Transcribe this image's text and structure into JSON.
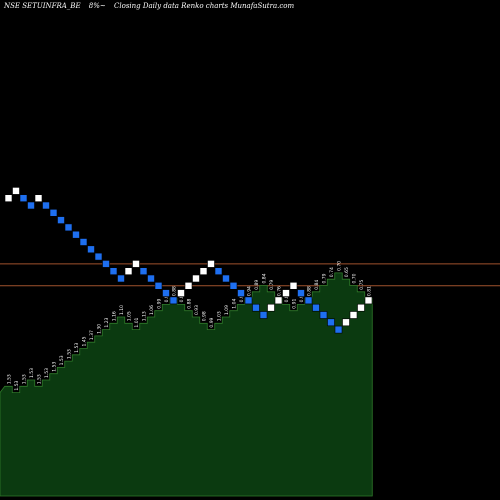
{
  "header": {
    "symbol": "NSE SETUINFRA_BE",
    "box_size": "8%~",
    "description": "Closing Daily data  Renko  charts MunafaSutra.com"
  },
  "colors": {
    "background": "#000000",
    "up_brick": "#ffffff",
    "down_brick": "#1e6ff0",
    "level_line": "#a0522d",
    "volume_fill": "#0b3a10",
    "volume_stroke": "#2f7a2a",
    "label_text": "#ffffff"
  },
  "chart_data": {
    "type": "renko",
    "title": "NSE SETUINFRA_BE 8%~ Closing Daily data Renko charts MunafaSutra.com",
    "box_size_pct": 8,
    "bricks": [
      {
        "level": 1,
        "dir": "up"
      },
      {
        "level": 2,
        "dir": "up"
      },
      {
        "level": 1,
        "dir": "down"
      },
      {
        "level": 0,
        "dir": "down"
      },
      {
        "level": 1,
        "dir": "up"
      },
      {
        "level": 0,
        "dir": "down"
      },
      {
        "level": -1,
        "dir": "down"
      },
      {
        "level": -2,
        "dir": "down"
      },
      {
        "level": -3,
        "dir": "down"
      },
      {
        "level": -4,
        "dir": "down"
      },
      {
        "level": -5,
        "dir": "down"
      },
      {
        "level": -6,
        "dir": "down"
      },
      {
        "level": -7,
        "dir": "down"
      },
      {
        "level": -8,
        "dir": "down"
      },
      {
        "level": -9,
        "dir": "down"
      },
      {
        "level": -10,
        "dir": "down"
      },
      {
        "level": -9,
        "dir": "up"
      },
      {
        "level": -8,
        "dir": "up"
      },
      {
        "level": -9,
        "dir": "down"
      },
      {
        "level": -10,
        "dir": "down"
      },
      {
        "level": -11,
        "dir": "down"
      },
      {
        "level": -12,
        "dir": "down"
      },
      {
        "level": -13,
        "dir": "down"
      },
      {
        "level": -12,
        "dir": "up"
      },
      {
        "level": -11,
        "dir": "up"
      },
      {
        "level": -10,
        "dir": "up"
      },
      {
        "level": -9,
        "dir": "up"
      },
      {
        "level": -8,
        "dir": "up"
      },
      {
        "level": -9,
        "dir": "down"
      },
      {
        "level": -10,
        "dir": "down"
      },
      {
        "level": -11,
        "dir": "down"
      },
      {
        "level": -12,
        "dir": "down"
      },
      {
        "level": -13,
        "dir": "down"
      },
      {
        "level": -14,
        "dir": "down"
      },
      {
        "level": -15,
        "dir": "down"
      },
      {
        "level": -14,
        "dir": "up"
      },
      {
        "level": -13,
        "dir": "up"
      },
      {
        "level": -12,
        "dir": "up"
      },
      {
        "level": -11,
        "dir": "up"
      },
      {
        "level": -12,
        "dir": "down"
      },
      {
        "level": -13,
        "dir": "down"
      },
      {
        "level": -14,
        "dir": "down"
      },
      {
        "level": -15,
        "dir": "down"
      },
      {
        "level": -16,
        "dir": "down"
      },
      {
        "level": -17,
        "dir": "down"
      },
      {
        "level": -16,
        "dir": "up"
      },
      {
        "level": -15,
        "dir": "up"
      },
      {
        "level": -14,
        "dir": "up"
      },
      {
        "level": -13,
        "dir": "up"
      }
    ],
    "value_labels": [
      "1.53",
      "1.53",
      "1.53",
      "1.53",
      "1.53",
      "1.53",
      "1.53",
      "1.53",
      "1.53",
      "1.53",
      "1.45",
      "1.37",
      "1.30",
      "1.23",
      "1.16",
      "1.10",
      "1.05",
      "1.01",
      "1.13",
      "1.06",
      "0.99",
      "0.93",
      "0.88",
      "0.84",
      "0.88",
      "0.93",
      "0.98",
      "0.99",
      "1.03",
      "1.09",
      "1.04",
      "0.99",
      "0.94",
      "0.89",
      "0.84",
      "0.79",
      "0.76",
      "0.88",
      "0.91",
      "0.93",
      "0.88",
      "0.84",
      "0.79",
      "0.74",
      "0.70",
      "0.65",
      "0.70",
      "0.75",
      "0.81"
    ],
    "level_lines": [
      {
        "level": -8,
        "style": "horizontal"
      },
      {
        "level": -11,
        "style": "horizontal"
      }
    ],
    "volume_area": true
  }
}
